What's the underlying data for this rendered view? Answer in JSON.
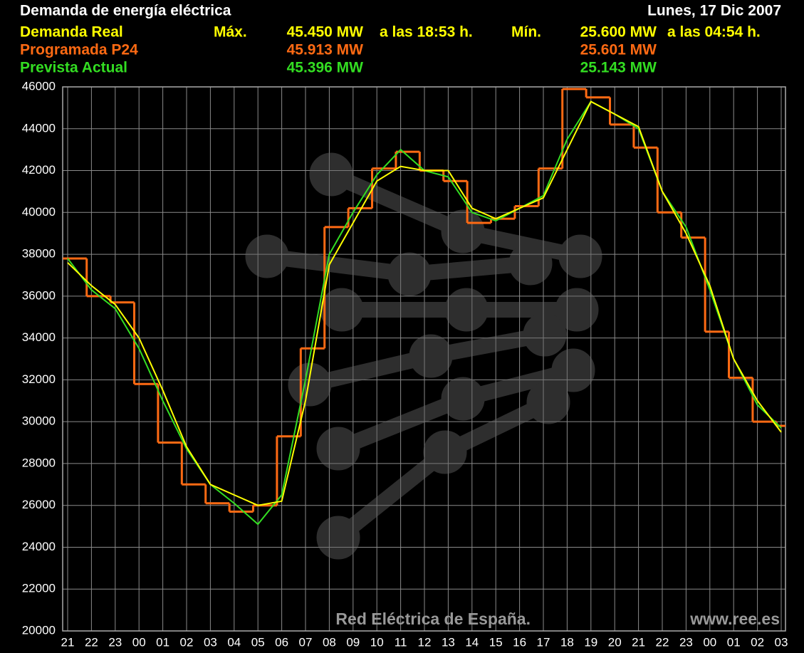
{
  "chart_data": {
    "type": "line",
    "title": "Demanda de energía eléctrica",
    "date": "Lunes, 17 Dic 2007",
    "max_label": "Máx.",
    "min_label": "Mín.",
    "max_time": "a las 18:53 h.",
    "min_time": "a las 04:54 h.",
    "watermark": "Red Eléctrica de España.",
    "website": "www.ree.es",
    "categories": [
      "21",
      "22",
      "23",
      "00",
      "01",
      "02",
      "03",
      "04",
      "05",
      "06",
      "07",
      "08",
      "09",
      "10",
      "11",
      "12",
      "13",
      "14",
      "15",
      "16",
      "17",
      "18",
      "19",
      "20",
      "21",
      "22",
      "23",
      "00",
      "01",
      "02",
      "03"
    ],
    "ylim": [
      20000,
      46000
    ],
    "yticks": [
      20000,
      22000,
      24000,
      26000,
      28000,
      30000,
      32000,
      34000,
      36000,
      38000,
      40000,
      42000,
      44000,
      46000
    ],
    "grid": true,
    "series": [
      {
        "name": "Demanda Real",
        "color": "#ffff00",
        "style": "line",
        "max": "45.450 MW",
        "min": "25.600 MW",
        "values": [
          37600,
          36500,
          35600,
          34000,
          31500,
          28800,
          27000,
          26500,
          26000,
          26200,
          31000,
          37500,
          39500,
          41500,
          42200,
          42000,
          42000,
          40200,
          39700,
          40200,
          40700,
          43000,
          45300,
          44700,
          44100,
          41000,
          39000,
          36500,
          33000,
          31000,
          29500
        ]
      },
      {
        "name": "Programada P24",
        "color": "#ff6a13",
        "style": "step",
        "max": "45.913 MW",
        "min": "25.601 MW",
        "values": [
          37800,
          36000,
          35700,
          31800,
          29000,
          27000,
          26100,
          25700,
          26000,
          29300,
          33500,
          39300,
          40200,
          42100,
          42900,
          42000,
          41500,
          39500,
          39700,
          40300,
          42100,
          45900,
          45500,
          44200,
          43100,
          40000,
          38800,
          34300,
          32100,
          30000,
          29800
        ]
      },
      {
        "name": "Prevista Actual",
        "color": "#33dd22",
        "style": "line",
        "max": "45.396 MW",
        "min": "25.143 MW",
        "values": [
          37800,
          36300,
          35400,
          33500,
          31000,
          28700,
          27000,
          26100,
          25100,
          26500,
          32000,
          38000,
          40000,
          41800,
          43000,
          42000,
          41700,
          40000,
          39600,
          40200,
          40800,
          43500,
          45300,
          44700,
          44000,
          41000,
          39300,
          36300,
          33000,
          30800,
          29700
        ]
      }
    ]
  }
}
